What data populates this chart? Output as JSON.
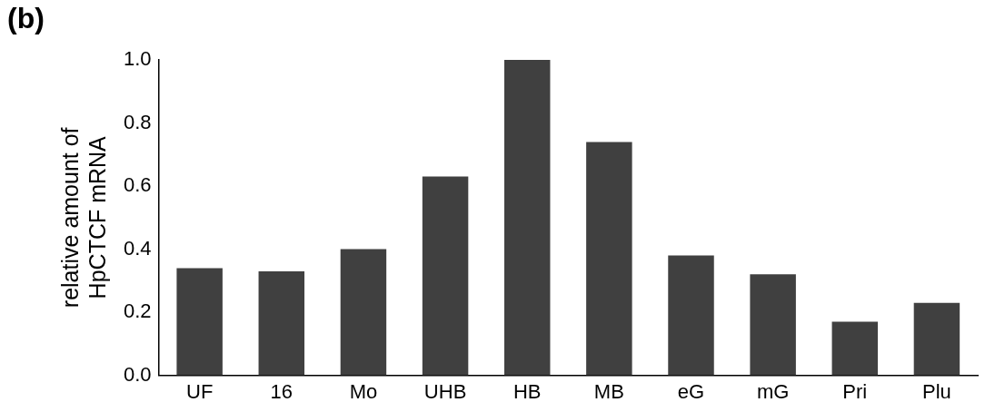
{
  "chart_data": {
    "type": "bar",
    "title": "(b)",
    "ylabel": "relative amount of\nHpCTCF mRNA",
    "categories": [
      "UF",
      "16",
      "Mo",
      "UHB",
      "HB",
      "MB",
      "eG",
      "mG",
      "Pri",
      "Plu"
    ],
    "values": [
      0.34,
      0.33,
      0.4,
      0.63,
      1.0,
      0.74,
      0.38,
      0.32,
      0.17,
      0.23
    ],
    "color": "#404040",
    "ylim": [
      0,
      1
    ],
    "yticks": [
      {
        "value": 0,
        "label": "0.0"
      },
      {
        "value": 0.2,
        "label": "0.2"
      },
      {
        "value": 0.4,
        "label": "0.4"
      },
      {
        "value": 0.6,
        "label": "0.6"
      },
      {
        "value": 0.8,
        "label": "0.8"
      },
      {
        "value": 1,
        "label": "1.0"
      }
    ],
    "grid": false,
    "legend": false
  }
}
